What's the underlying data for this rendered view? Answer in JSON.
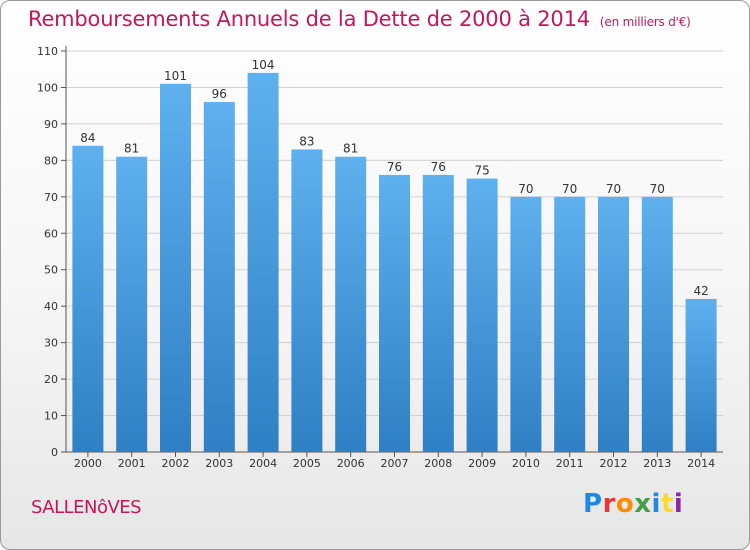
{
  "header": {
    "title": "Remboursements Annuels de la Dette de 2000 à 2014",
    "unit_note": "(en milliers d'€)"
  },
  "footer": {
    "commune": "SALLENôVES",
    "logo_letters": [
      "P",
      "r",
      "o",
      "x",
      "i",
      "t",
      "i"
    ],
    "logo_colors": [
      "#1e88e5",
      "#e53935",
      "#fb8c00",
      "#43a047",
      "#1e88e5",
      "#fdd835",
      "#8e24aa"
    ]
  },
  "chart_data": {
    "type": "bar",
    "title": "Remboursements Annuels de la Dette de 2000 à 2014",
    "xlabel": "",
    "ylabel": "",
    "categories": [
      "2000",
      "2001",
      "2002",
      "2003",
      "2004",
      "2005",
      "2006",
      "2007",
      "2008",
      "2009",
      "2010",
      "2011",
      "2012",
      "2013",
      "2014"
    ],
    "values": [
      84,
      81,
      101,
      96,
      104,
      83,
      81,
      76,
      76,
      75,
      70,
      70,
      70,
      70,
      42
    ],
    "ylim": [
      0,
      110
    ],
    "yticks": [
      0,
      10,
      20,
      30,
      40,
      50,
      60,
      70,
      80,
      90,
      100,
      110
    ],
    "grid": true,
    "bar_color": "#4a9de0"
  }
}
